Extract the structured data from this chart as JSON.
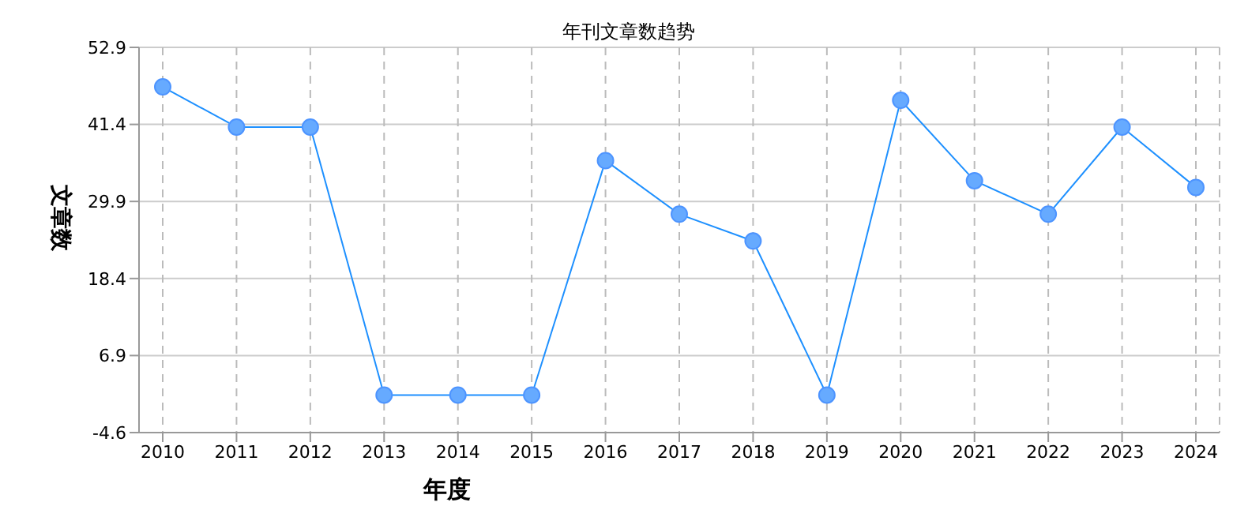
{
  "chart_data": {
    "type": "line",
    "title": "年刊文章数趋势",
    "xlabel": "年度",
    "ylabel": "文章数",
    "categories": [
      "2010",
      "2011",
      "2012",
      "2013",
      "2014",
      "2015",
      "2016",
      "2017",
      "2018",
      "2019",
      "2020",
      "2021",
      "2022",
      "2023",
      "2024"
    ],
    "series": [
      {
        "color": "#1e90ff",
        "values": [
          47,
          41,
          41,
          1,
          1,
          1,
          36,
          28,
          24,
          1,
          45,
          33,
          28,
          41,
          32
        ]
      }
    ],
    "ylim": [
      -4.6,
      52.9
    ],
    "yticks": [
      -4.6,
      6.9,
      18.4,
      29.9,
      41.4,
      52.9
    ],
    "grid": true,
    "marker": "circle",
    "line_style": "solid",
    "legend": false
  }
}
